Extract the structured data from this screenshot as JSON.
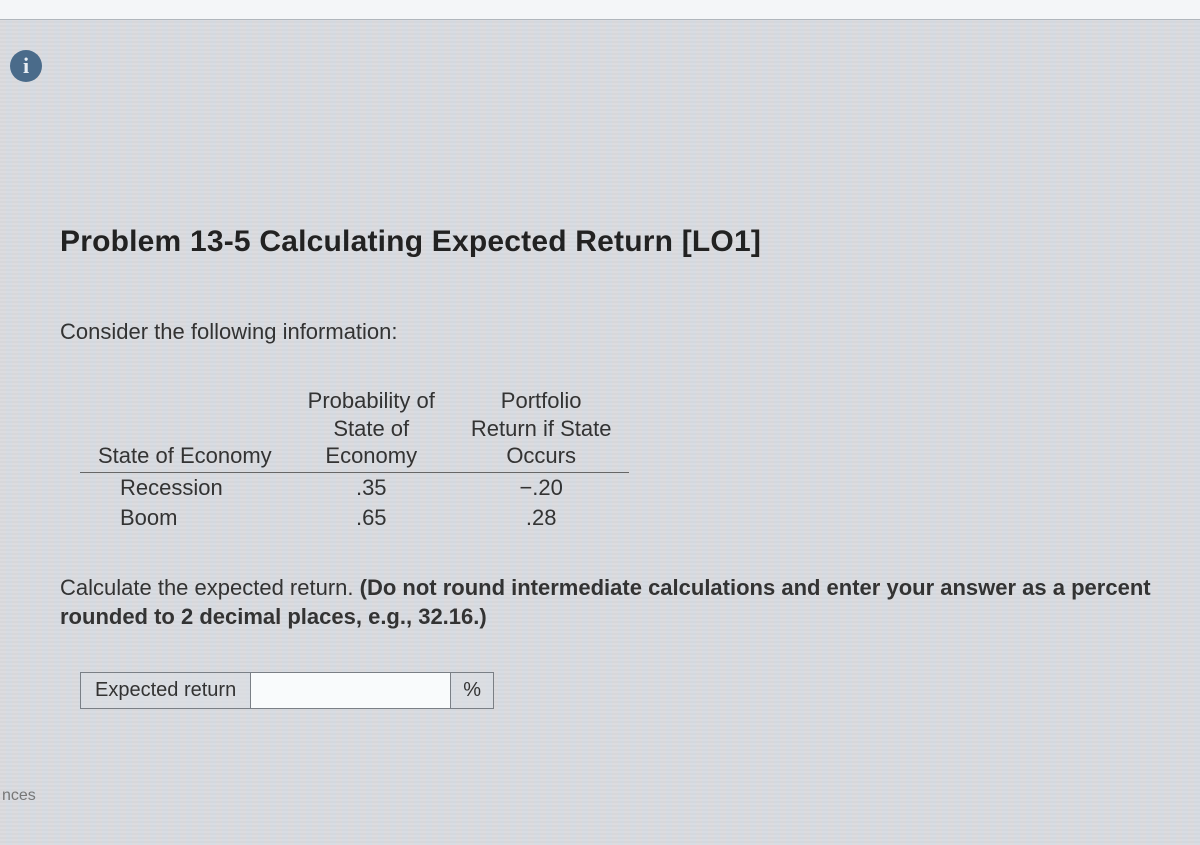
{
  "info_icon_glyph": "i",
  "title": "Problem 13-5 Calculating Expected Return [LO1]",
  "intro": "Consider the following information:",
  "table": {
    "headers": {
      "col1": "State of Economy",
      "col2_line1": "Probability of",
      "col2_line2": "State of",
      "col2_line3": "Economy",
      "col3_line1": "Portfolio",
      "col3_line2": "Return if State",
      "col3_line3": "Occurs"
    },
    "rows": [
      {
        "state": "Recession",
        "prob": ".35",
        "ret": "−.20"
      },
      {
        "state": "Boom",
        "prob": ".65",
        "ret": ".28"
      }
    ]
  },
  "question_prefix": "Calculate the expected return. ",
  "question_bold": "(Do not round intermediate calculations and enter your answer as a percent rounded to 2 decimal places, e.g., 32.16.)",
  "answer": {
    "label": "Expected return",
    "value": "",
    "unit": "%"
  },
  "stray_text": "nces",
  "colors": {
    "page_bg": "#d8dce0",
    "text": "#333333",
    "info_icon_bg": "#4a6b8a",
    "border": "#7a7f85"
  }
}
